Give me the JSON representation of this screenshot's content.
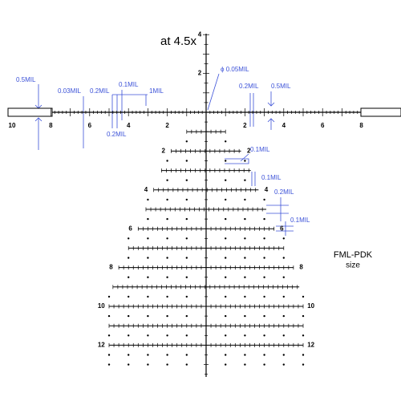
{
  "title": "at 4.5x",
  "caption": [
    "FML-PDK",
    "size"
  ],
  "scale": {
    "left": [
      10,
      8,
      6,
      4,
      2
    ],
    "right": [
      2,
      4,
      6,
      8
    ],
    "up": [
      4,
      2
    ],
    "tree_rows": [
      2,
      4,
      6,
      8,
      10,
      12
    ]
  },
  "annotations": [
    "0.5MIL",
    "0.03MIL",
    "0.2MIL",
    "0.1MIL",
    "1MIL",
    "0.2MIL",
    "ϕ 0.05MIL",
    "0.2MIL",
    "0.5MIL",
    "0.1MIL",
    "0.1MIL",
    "0.2MIL",
    "0.1MIL"
  ]
}
